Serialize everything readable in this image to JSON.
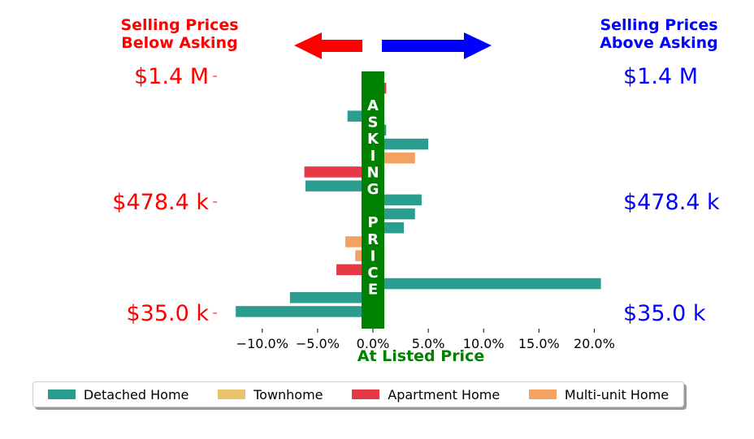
{
  "header": {
    "below_line1": "Selling Prices",
    "below_line2": "Below Asking",
    "above_line1": "Selling Prices",
    "above_line2": "Above Asking",
    "below_color": "#ff0000",
    "above_color": "#0000ff"
  },
  "center_band": {
    "letters": [
      "A",
      "S",
      "K",
      "I",
      "N",
      "G",
      "",
      "P",
      "R",
      "I",
      "C",
      "E"
    ],
    "color": "#008000"
  },
  "colors": {
    "Detached Home": "#2a9d8f",
    "Townhome": "#e9c46a",
    "Apartment Home": "#e63946",
    "Multi-unit Home": "#f4a261"
  },
  "chart_data": {
    "type": "bar",
    "orientation": "horizontal",
    "xlabel": "At Listed Price",
    "xlim": [
      -12.5,
      20.5
    ],
    "xticks": [
      -10,
      -5,
      0,
      5,
      10,
      15,
      20
    ],
    "xtick_labels": [
      "−10.0%",
      "−5.0%",
      "0.0%",
      "5.0%",
      "10.0%",
      "15.0%",
      "20.0%"
    ],
    "y_left_labels": [
      "$1.4 M",
      "$478.4 k",
      "$35.0 k"
    ],
    "y_right_labels": [
      "$1.4 M",
      "$478.4 k",
      "$35.0 k"
    ],
    "bars": [
      {
        "type": "Apartment Home",
        "value": 1.2
      },
      {
        "type": "Townhome",
        "value": 1.0
      },
      {
        "type": "Detached Home",
        "value": -2.3
      },
      {
        "type": "Detached Home",
        "value": 1.2
      },
      {
        "type": "Detached Home",
        "value": 5.0
      },
      {
        "type": "Multi-unit Home",
        "value": 3.8
      },
      {
        "type": "Apartment Home",
        "value": -6.2
      },
      {
        "type": "Detached Home",
        "value": -6.1
      },
      {
        "type": "Detached Home",
        "value": 4.4
      },
      {
        "type": "Detached Home",
        "value": 3.8
      },
      {
        "type": "Detached Home",
        "value": 2.8
      },
      {
        "type": "Multi-unit Home",
        "value": -2.5
      },
      {
        "type": "Multi-unit Home",
        "value": -1.6
      },
      {
        "type": "Apartment Home",
        "value": -3.3
      },
      {
        "type": "Detached Home",
        "value": 20.6
      },
      {
        "type": "Detached Home",
        "value": -7.5
      },
      {
        "type": "Detached Home",
        "value": -12.4
      }
    ],
    "legend": {
      "placement": "bottom",
      "entries": [
        "Detached Home",
        "Townhome",
        "Apartment Home",
        "Multi-unit Home"
      ]
    },
    "grid": false
  }
}
